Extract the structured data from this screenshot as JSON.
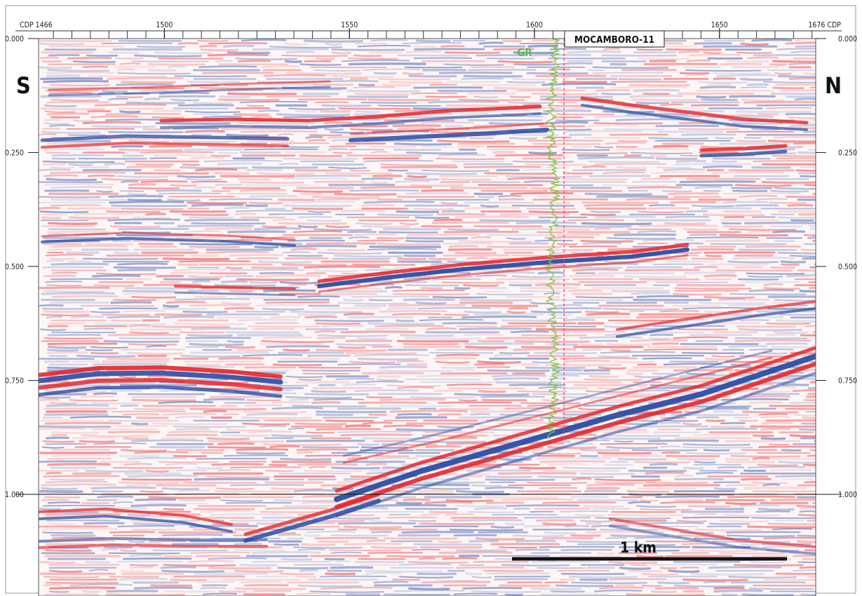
{
  "cdp_axis": {
    "start_label": "CDP 1466",
    "end_label": "1676 CDP",
    "first_cdp": 1466,
    "last_cdp": 1676,
    "labeled_ticks": [
      {
        "cdp": 1500,
        "label": "1500"
      },
      {
        "cdp": 1550,
        "label": "1550"
      },
      {
        "cdp": 1600,
        "label": "1600"
      },
      {
        "cdp": 1650,
        "label": "1650"
      }
    ],
    "minor_tick_interval": 5
  },
  "time_axis": {
    "min": 0.0,
    "max": 1.2,
    "ticks": [
      {
        "value": 0.0,
        "label": "0.000"
      },
      {
        "value": 0.25,
        "label": "0.250"
      },
      {
        "value": 0.5,
        "label": "0.500"
      },
      {
        "value": 0.75,
        "label": "0.750"
      },
      {
        "value": 1.0,
        "label": "1.000"
      }
    ],
    "reference_line_value": 1.0
  },
  "orientation": {
    "left": "S",
    "right": "N"
  },
  "well": {
    "name": "MOCAMBORO-11",
    "cdp": 1608,
    "log_name": "GR",
    "log_color": "#7dc242",
    "log_label_color": "#5cb85c",
    "marker_color": "#e8427c",
    "log_depth_range": [
      0.0,
      0.88
    ]
  },
  "scale_bar": {
    "label": "1 km"
  },
  "colors": {
    "positive_amplitude": "#e8262a",
    "negative_amplitude": "#2a4ea8",
    "background": "#ffffff"
  }
}
